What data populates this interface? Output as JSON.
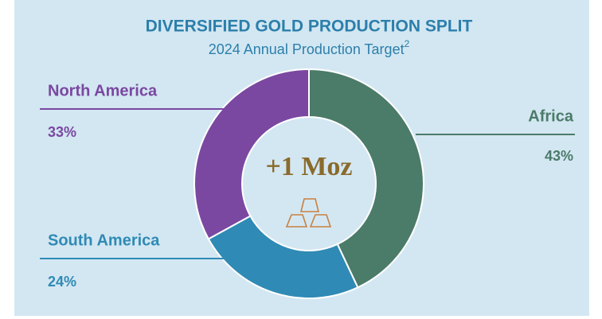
{
  "chart_data": {
    "type": "donut",
    "title": "DIVERSIFIED GOLD PRODUCTION SPLIT",
    "subtitle": "2024 Annual Production Target",
    "subtitle_footnote": "2",
    "center_label": "+1 Moz",
    "categories": [
      "Africa",
      "South America",
      "North America"
    ],
    "values": [
      43,
      24,
      33
    ],
    "value_labels": [
      "43%",
      "24%",
      "33%"
    ],
    "colors": [
      "#4b7b69",
      "#2f8ab5",
      "#7a48a1"
    ]
  }
}
